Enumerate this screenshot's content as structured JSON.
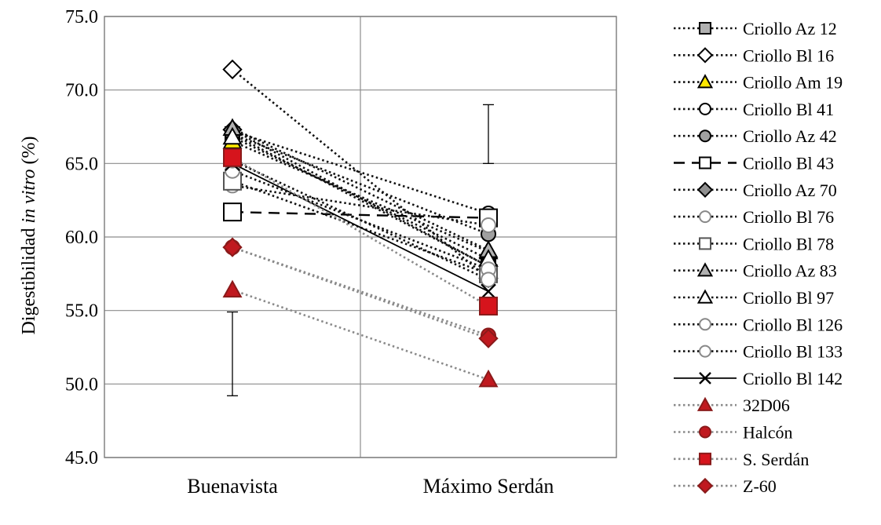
{
  "chart_data": {
    "type": "line",
    "ylabel_parts": [
      "Digestibilidad ",
      "in vitro",
      " (%)"
    ],
    "categories": [
      "Buenavista",
      "Máximo Serdán"
    ],
    "ylim": [
      45.0,
      75.0
    ],
    "yticks": [
      "75.0",
      "70.0",
      "65.0",
      "60.0",
      "55.0",
      "50.0",
      "45.0"
    ],
    "ytick_values": [
      75,
      70,
      65,
      60,
      55,
      50,
      45
    ],
    "grid": true,
    "legend_position": "right",
    "error_bars": [
      {
        "category": "Buenavista",
        "low": 49.2,
        "high": 54.9
      },
      {
        "category": "Máximo Serdán",
        "low": 65.0,
        "high": 69.0
      }
    ],
    "series": [
      {
        "name": "Criollo Az 12",
        "values": [
          67.0,
          58.0
        ],
        "marker": "square",
        "fill": "#b0b0b0",
        "stroke": "#000000",
        "line": "dotted"
      },
      {
        "name": "Criollo Bl 16",
        "values": [
          71.4,
          57.2
        ],
        "marker": "diamond",
        "fill": "#ffffff",
        "stroke": "#000000",
        "line": "dotted"
      },
      {
        "name": "Criollo Am 19",
        "values": [
          66.5,
          59.0
        ],
        "marker": "triangle",
        "fill": "#ffe800",
        "stroke": "#000000",
        "line": "dotted"
      },
      {
        "name": "Criollo Bl 41",
        "values": [
          67.2,
          61.6
        ],
        "marker": "circle",
        "fill": "#ffffff",
        "stroke": "#000000",
        "line": "dotted"
      },
      {
        "name": "Criollo Az 42",
        "values": [
          67.0,
          60.2
        ],
        "marker": "circle",
        "fill": "#a0a0a0",
        "stroke": "#000000",
        "line": "dotted"
      },
      {
        "name": "Criollo Bl 43",
        "values": [
          61.7,
          61.3
        ],
        "marker": "square",
        "fill": "#ffffff",
        "stroke": "#000000",
        "line": "dashed"
      },
      {
        "name": "Criollo Az 70",
        "values": [
          67.3,
          58.0
        ],
        "marker": "diamond",
        "fill": "#909090",
        "stroke": "#000000",
        "line": "dotted"
      },
      {
        "name": "Criollo  Bl 76",
        "values": [
          63.5,
          60.8
        ],
        "marker": "circle",
        "fill": "#ffffff",
        "stroke": "#888888",
        "line": "dotted"
      },
      {
        "name": "Criollo  Bl 78",
        "values": [
          63.8,
          57.5
        ],
        "marker": "square",
        "fill": "#ffffff",
        "stroke": "#555555",
        "line": "dotted"
      },
      {
        "name": "Criollo  Az 83",
        "values": [
          67.4,
          59.1
        ],
        "marker": "triangle",
        "fill": "#b0b0b0",
        "stroke": "#000000",
        "line": "dotted"
      },
      {
        "name": "Criollo Bl 97",
        "values": [
          66.8,
          58.5
        ],
        "marker": "triangle",
        "fill": "#ffffff",
        "stroke": "#000000",
        "line": "dotted"
      },
      {
        "name": "Criollo Bl 126",
        "values": [
          64.5,
          57.8
        ],
        "marker": "circle",
        "fill": "#ffffff",
        "stroke": "#888888",
        "line": "dotted"
      },
      {
        "name": "Criollo Bl 133",
        "values": [
          65.2,
          57.1
        ],
        "marker": "circle",
        "fill": "#ffffff",
        "stroke": "#888888",
        "line": "dotted"
      },
      {
        "name": "Criollo Bl 142",
        "values": [
          65.0,
          56.3
        ],
        "marker": "x",
        "fill": "none",
        "stroke": "#000000",
        "line": "solid"
      },
      {
        "name": "32D06",
        "values": [
          56.4,
          50.3
        ],
        "marker": "triangle",
        "fill": "#c0191f",
        "stroke": "#8a1a1a",
        "line": "dotted-gray"
      },
      {
        "name": "Halcón",
        "values": [
          59.3,
          53.3
        ],
        "marker": "circle",
        "fill": "#c0191f",
        "stroke": "#8a1a1a",
        "line": "dotted-gray"
      },
      {
        "name": "S. Serdán",
        "values": [
          65.4,
          55.3
        ],
        "marker": "square",
        "fill": "#d6141c",
        "stroke": "#8a1a1a",
        "line": "dotted-gray"
      },
      {
        "name": "Z-60",
        "values": [
          59.3,
          53.1
        ],
        "marker": "diamond",
        "fill": "#c0191f",
        "stroke": "#8a1a1a",
        "line": "dotted-gray"
      }
    ]
  }
}
